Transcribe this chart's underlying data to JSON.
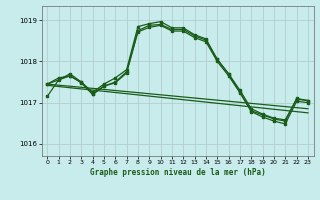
{
  "title": "Graphe pression niveau de la mer (hPa)",
  "background_color": "#c8ecec",
  "grid_color": "#b0c8c8",
  "line_color": "#1a5c1a",
  "xlim": [
    -0.5,
    23.5
  ],
  "ylim": [
    1015.7,
    1019.35
  ],
  "yticks": [
    1016,
    1017,
    1018,
    1019
  ],
  "xticks": [
    0,
    1,
    2,
    3,
    4,
    5,
    6,
    7,
    8,
    9,
    10,
    11,
    12,
    13,
    14,
    15,
    16,
    17,
    18,
    19,
    20,
    21,
    22,
    23
  ],
  "series1_x": [
    0,
    1,
    2,
    3,
    4,
    5,
    6,
    7,
    8,
    9,
    10,
    11,
    12,
    13,
    14,
    15,
    16,
    17,
    18,
    19,
    20,
    21,
    22,
    23
  ],
  "series1_y": [
    1017.15,
    1017.55,
    1017.7,
    1017.5,
    1017.25,
    1017.45,
    1017.6,
    1017.8,
    1018.85,
    1018.92,
    1018.97,
    1018.82,
    1018.82,
    1018.65,
    1018.55,
    1018.05,
    1017.7,
    1017.25,
    1016.8,
    1016.7,
    1016.6,
    1016.55,
    1017.1,
    1017.05
  ],
  "series2_x": [
    0,
    1,
    2,
    3,
    4,
    5,
    6,
    7,
    8,
    9,
    10,
    11,
    12,
    13,
    14,
    15,
    16,
    17,
    18,
    19,
    20,
    21,
    22,
    23
  ],
  "series2_y": [
    1017.45,
    1017.6,
    1017.65,
    1017.5,
    1017.2,
    1017.4,
    1017.5,
    1017.75,
    1018.75,
    1018.88,
    1018.9,
    1018.78,
    1018.78,
    1018.62,
    1018.52,
    1018.05,
    1017.7,
    1017.3,
    1016.85,
    1016.72,
    1016.62,
    1016.58,
    1017.08,
    1017.05
  ],
  "series3_x": [
    0,
    2,
    3,
    4,
    5,
    6,
    7,
    8,
    9,
    10,
    11,
    12,
    13,
    14,
    15,
    16,
    17,
    18,
    19,
    20,
    21,
    22,
    23
  ],
  "series3_y": [
    1017.45,
    1017.65,
    1017.48,
    1017.2,
    1017.4,
    1017.48,
    1017.72,
    1018.72,
    1018.83,
    1018.88,
    1018.74,
    1018.74,
    1018.58,
    1018.48,
    1018.0,
    1017.65,
    1017.24,
    1016.78,
    1016.65,
    1016.55,
    1016.48,
    1017.03,
    1017.0
  ],
  "series4_x": [
    0,
    23
  ],
  "series4_y": [
    1017.45,
    1016.85
  ],
  "series5_x": [
    0,
    23
  ],
  "series5_y": [
    1017.42,
    1016.75
  ]
}
